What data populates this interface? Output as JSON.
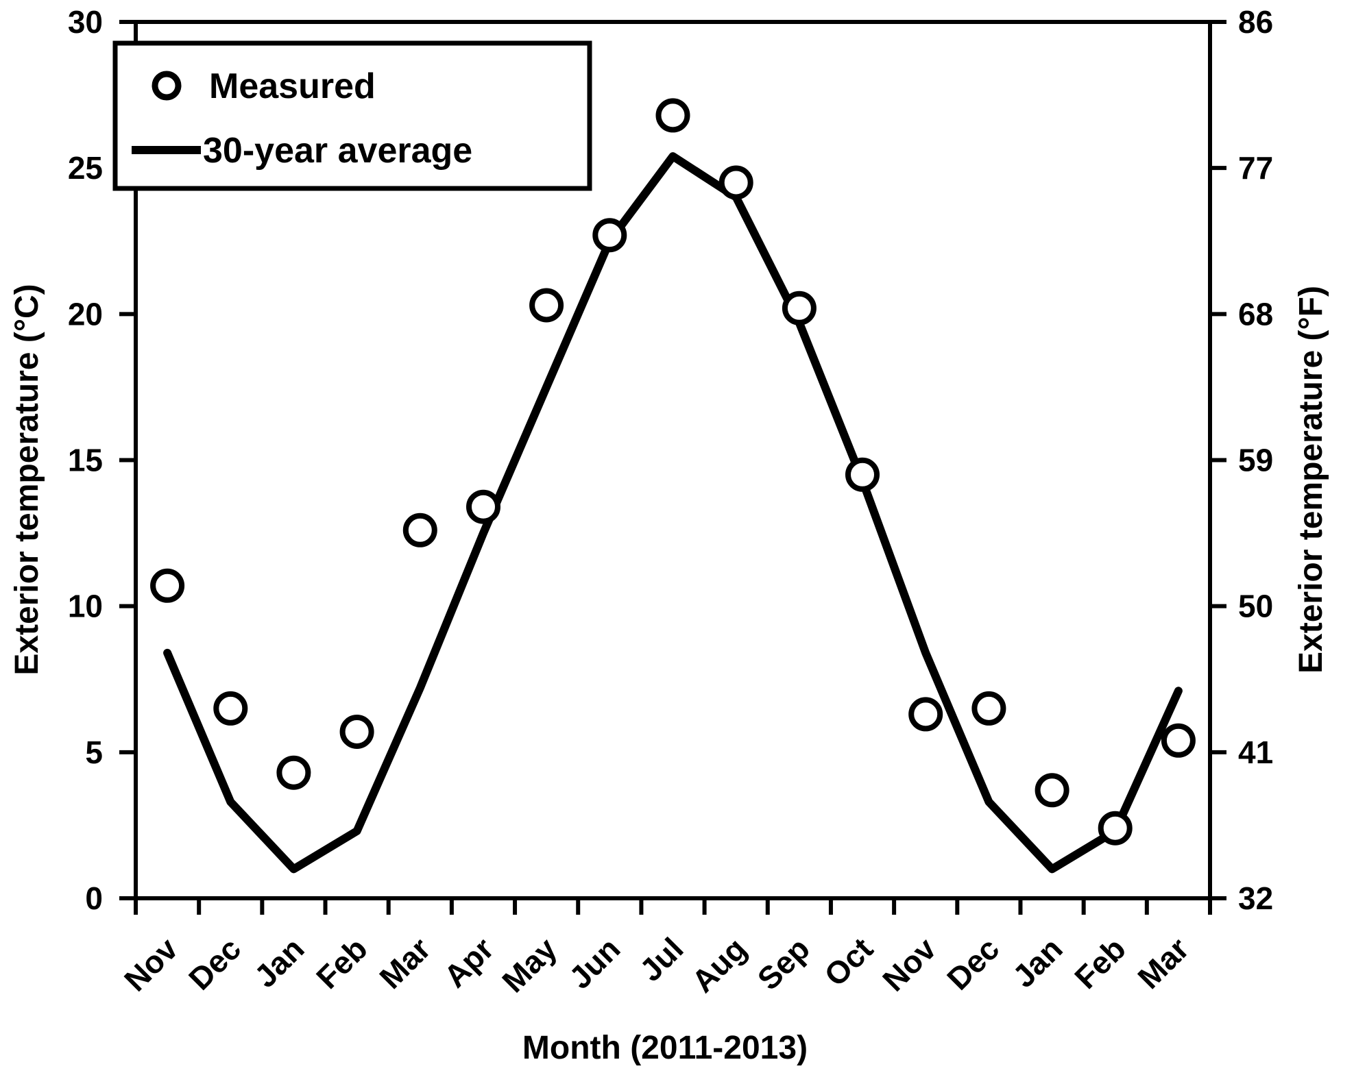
{
  "figure": {
    "background": "#ffffff",
    "ink_color": "#000000"
  },
  "chart_data": {
    "type": "line",
    "subtype": "scatter-plus-line",
    "title": "",
    "xlabel": "Month (2011-2013)",
    "ylabel_left": "Exterior temperature (°C)",
    "ylabel_right": "Exterior temperature (°F)",
    "categories": [
      "Nov",
      "Dec",
      "Jan",
      "Feb",
      "Mar",
      "Apr",
      "May",
      "Jun",
      "Jul",
      "Aug",
      "Sep",
      "Oct",
      "Nov",
      "Dec",
      "Jan",
      "Feb",
      "Mar"
    ],
    "y_axis_left": {
      "ticks": [
        0,
        5,
        10,
        15,
        20,
        25,
        30
      ],
      "range": [
        0,
        30
      ]
    },
    "y_axis_right": {
      "ticks": [
        32,
        41,
        50,
        59,
        68,
        77,
        86
      ],
      "range": [
        32,
        86
      ]
    },
    "grid": false,
    "legend": {
      "position": "top-left",
      "items": [
        {
          "label": "Measured",
          "marker": "open-circle"
        },
        {
          "label": "30-year average",
          "marker": "thick-line"
        }
      ]
    },
    "series": [
      {
        "name": "Measured",
        "type": "scatter",
        "marker": "open-circle",
        "values": [
          10.7,
          6.5,
          4.3,
          5.7,
          12.6,
          13.4,
          20.3,
          22.7,
          26.8,
          24.5,
          20.2,
          14.5,
          6.3,
          6.5,
          3.7,
          2.4,
          5.4
        ]
      },
      {
        "name": "30-year average",
        "type": "line",
        "values": [
          8.4,
          3.3,
          1.0,
          2.3,
          7.2,
          12.5,
          17.5,
          22.5,
          25.4,
          24.0,
          19.7,
          14.3,
          8.4,
          3.3,
          1.0,
          2.3,
          7.1
        ]
      }
    ]
  }
}
